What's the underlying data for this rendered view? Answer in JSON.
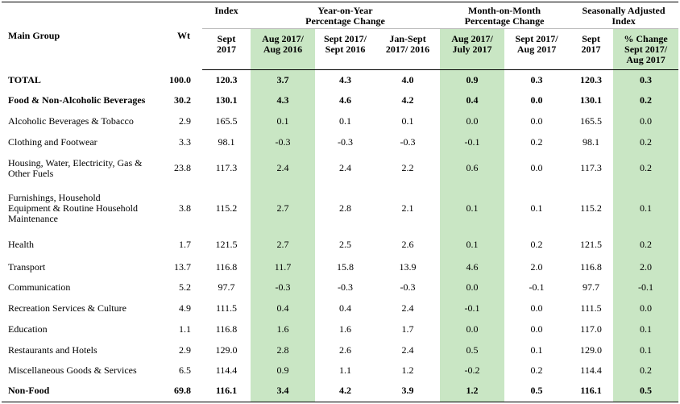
{
  "header": {
    "row1": [
      "Main Group",
      "Wt",
      "Index",
      "Year-on-Year\nPercentage Change",
      "Month-on-Month\nPercentage Change",
      "Seasonally Adjusted\nIndex"
    ],
    "row2": [
      "Sept\n2017",
      "Aug 2017/\nAug 2016",
      "Sept 2017/\nSept 2016",
      "Jan-Sept\n2017/ 2016",
      "Aug 2017/\nJuly 2017",
      "Sept 2017/\nAug 2017",
      "Sept\n2017",
      "% Change\nSept 2017/\nAug 2017"
    ]
  },
  "rows": [
    {
      "label": "TOTAL",
      "bold": true,
      "cells": [
        "100.0",
        "120.3",
        "3.7",
        "4.3",
        "4.0",
        "0.9",
        "0.3",
        "120.3",
        "0.3"
      ]
    },
    {
      "label": "Food & Non-Alcoholic Beverages",
      "bold": true,
      "cells": [
        "30.2",
        "130.1",
        "4.3",
        "4.6",
        "4.2",
        "0.4",
        "0.0",
        "130.1",
        "0.2"
      ]
    },
    {
      "label": "Alcoholic Beverages & Tobacco",
      "cells": [
        "2.9",
        "165.5",
        "0.1",
        "0.1",
        "0.1",
        "0.0",
        "0.0",
        "165.5",
        "0.0"
      ]
    },
    {
      "label": "Clothing and Footwear",
      "cells": [
        "3.3",
        "98.1",
        "-0.3",
        "-0.3",
        "-0.3",
        "-0.1",
        "0.2",
        "98.1",
        "0.2"
      ]
    },
    {
      "label": "Housing, Water, Electricity, Gas &\nOther Fuels",
      "cells": [
        "23.8",
        "117.3",
        "2.4",
        "2.4",
        "2.2",
        "0.6",
        "0.0",
        "117.3",
        "0.2"
      ]
    },
    {
      "label": "Furnishings, Household\nEquipment & Routine Household\nMaintenance",
      "cells": [
        "3.8",
        "115.2",
        "2.7",
        "2.8",
        "2.1",
        "0.1",
        "0.1",
        "115.2",
        "0.1"
      ]
    },
    {
      "label": "Health",
      "cells": [
        "1.7",
        "121.5",
        "2.7",
        "2.5",
        "2.6",
        "0.1",
        "0.2",
        "121.5",
        "0.2"
      ]
    },
    {
      "label": "Transport",
      "cells": [
        "13.7",
        "116.8",
        "11.7",
        "15.8",
        "13.9",
        "4.6",
        "2.0",
        "116.8",
        "2.0"
      ]
    },
    {
      "label": "Communication",
      "cells": [
        "5.2",
        "97.7",
        "-0.3",
        "-0.3",
        "-0.3",
        "0.0",
        "-0.1",
        "97.7",
        "-0.1"
      ]
    },
    {
      "label": "Recreation Services & Culture",
      "cells": [
        "4.9",
        "111.5",
        "0.4",
        "0.4",
        "2.4",
        "-0.1",
        "0.0",
        "111.5",
        "0.0"
      ]
    },
    {
      "label": "Education",
      "cells": [
        "1.1",
        "116.8",
        "1.6",
        "1.6",
        "1.7",
        "0.0",
        "0.0",
        "117.0",
        "0.1"
      ]
    },
    {
      "label": "Restaurants and Hotels",
      "cells": [
        "2.9",
        "129.0",
        "2.8",
        "2.6",
        "2.4",
        "0.5",
        "0.1",
        "129.0",
        "0.1"
      ]
    },
    {
      "label": "Miscellaneous Goods & Services",
      "cells": [
        "6.5",
        "114.4",
        "0.9",
        "1.1",
        "1.2",
        "-0.2",
        "0.2",
        "114.4",
        "0.2"
      ]
    },
    {
      "label": "Non-Food",
      "bold": true,
      "cells": [
        "69.8",
        "116.1",
        "3.4",
        "4.2",
        "3.9",
        "1.2",
        "0.5",
        "116.1",
        "0.5"
      ]
    }
  ]
}
